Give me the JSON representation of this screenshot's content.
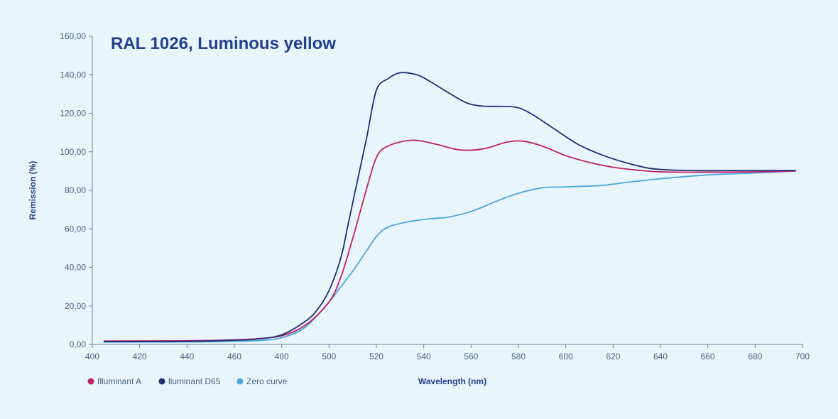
{
  "chart_data": {
    "type": "line",
    "title": "RAL 1026, Luminous yellow",
    "xlabel": "Wavelength (nm)",
    "ylabel": "Remission (%)",
    "xlim": [
      400,
      700
    ],
    "ylim": [
      0,
      160
    ],
    "x_ticks": [
      "400",
      "420",
      "440",
      "460",
      "480",
      "500",
      "520",
      "540",
      "560",
      "580",
      "600",
      "620",
      "640",
      "660",
      "680",
      "700"
    ],
    "y_ticks": [
      "0,00",
      "20,00",
      "40,00",
      "60,00",
      "80,00",
      "100,00",
      "120,00",
      "140,00",
      "160,00"
    ],
    "grid": false,
    "legend_position": "bottom-left",
    "series": [
      {
        "name": "Illuminant A",
        "color": "#c0215f",
        "points": [
          [
            405,
            1.8
          ],
          [
            440,
            1.9
          ],
          [
            460,
            2.4
          ],
          [
            470,
            3.0
          ],
          [
            480,
            4.5
          ],
          [
            490,
            10
          ],
          [
            500,
            22
          ],
          [
            505,
            35
          ],
          [
            510,
            55
          ],
          [
            515,
            77
          ],
          [
            520,
            97
          ],
          [
            525,
            103
          ],
          [
            535,
            106
          ],
          [
            545,
            104
          ],
          [
            555,
            101
          ],
          [
            565,
            101.5
          ],
          [
            575,
            105
          ],
          [
            582,
            105.5
          ],
          [
            590,
            103
          ],
          [
            600,
            98
          ],
          [
            610,
            94.5
          ],
          [
            620,
            92
          ],
          [
            630,
            90.5
          ],
          [
            640,
            89.6
          ],
          [
            660,
            89.4
          ],
          [
            680,
            89.6
          ],
          [
            697,
            90
          ]
        ]
      },
      {
        "name": "lluminant D65",
        "color": "#1e2f7a",
        "points": [
          [
            405,
            1.5
          ],
          [
            440,
            1.6
          ],
          [
            460,
            2.2
          ],
          [
            470,
            2.8
          ],
          [
            480,
            5
          ],
          [
            490,
            12
          ],
          [
            495,
            18
          ],
          [
            500,
            28
          ],
          [
            505,
            45
          ],
          [
            508,
            62
          ],
          [
            512,
            85
          ],
          [
            516,
            108
          ],
          [
            520,
            132
          ],
          [
            525,
            138
          ],
          [
            530,
            141
          ],
          [
            537,
            140
          ],
          [
            542,
            137
          ],
          [
            550,
            131
          ],
          [
            558,
            125.5
          ],
          [
            565,
            123.7
          ],
          [
            578,
            123.3
          ],
          [
            585,
            120
          ],
          [
            595,
            112
          ],
          [
            605,
            104
          ],
          [
            615,
            98.5
          ],
          [
            625,
            94.5
          ],
          [
            635,
            91.5
          ],
          [
            645,
            90.5
          ],
          [
            660,
            90.2
          ],
          [
            697,
            90.3
          ]
        ]
      },
      {
        "name": "Zero curve",
        "color": "#4da6dc",
        "points": [
          [
            405,
            1.2
          ],
          [
            450,
            1.4
          ],
          [
            470,
            2.0
          ],
          [
            480,
            3.5
          ],
          [
            490,
            9
          ],
          [
            500,
            22
          ],
          [
            505,
            30
          ],
          [
            510,
            38
          ],
          [
            515,
            47
          ],
          [
            520,
            56
          ],
          [
            525,
            61
          ],
          [
            535,
            64
          ],
          [
            545,
            65.5
          ],
          [
            550,
            66
          ],
          [
            560,
            69
          ],
          [
            570,
            74
          ],
          [
            580,
            78.5
          ],
          [
            590,
            81.3
          ],
          [
            600,
            81.8
          ],
          [
            615,
            82.5
          ],
          [
            625,
            84
          ],
          [
            640,
            86
          ],
          [
            660,
            88
          ],
          [
            680,
            89
          ],
          [
            697,
            90
          ]
        ]
      }
    ]
  }
}
